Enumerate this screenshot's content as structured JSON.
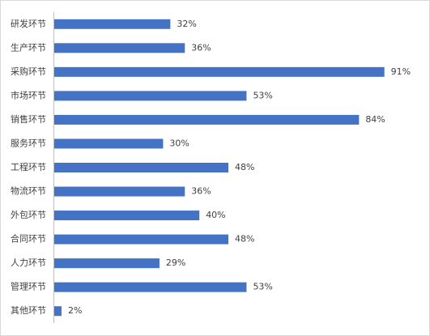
{
  "chart_data": {
    "type": "bar",
    "orientation": "horizontal",
    "categories": [
      "研发环节",
      "生产环节",
      "采购环节",
      "市场环节",
      "销售环节",
      "服务环节",
      "工程环节",
      "物流环节",
      "外包环节",
      "合同环节",
      "人力环节",
      "管理环节",
      "其他环节"
    ],
    "values": [
      32,
      36,
      91,
      53,
      84,
      30,
      48,
      36,
      40,
      48,
      29,
      53,
      2
    ],
    "value_labels": [
      "32%",
      "36%",
      "91%",
      "53%",
      "84%",
      "30%",
      "48%",
      "36%",
      "40%",
      "48%",
      "29%",
      "53%",
      "2%"
    ],
    "color": "#4472c4"
  }
}
